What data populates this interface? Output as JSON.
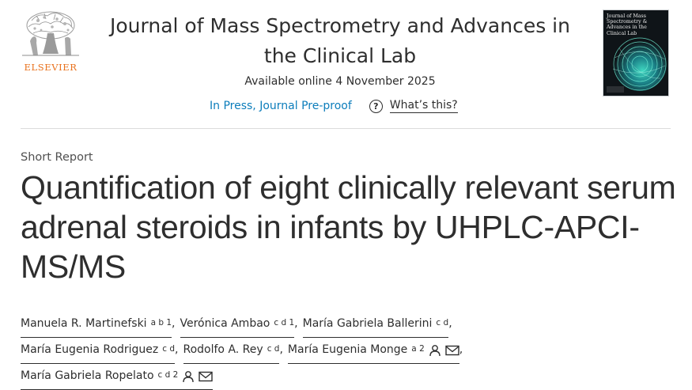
{
  "publisher": {
    "name": "ELSEVIER",
    "logo": "elsevier-tree-logo"
  },
  "journal": {
    "title_line1": "Journal of Mass Spectrometry and Advances in",
    "title_line2": "the Clinical Lab",
    "cover_title": "Journal of Mass Spectrometry & Advances in the Clinical Lab"
  },
  "availability": "Available online 4 November 2025",
  "status": {
    "in_press": "In Press, Journal Pre-proof",
    "whats_this": "What’s this?",
    "icon": "question-circle-icon"
  },
  "article": {
    "type": "Short Report",
    "title": "Quantification of eight clinically relevant serum adrenal steroids in infants by UHPLC-APCI-MS/MS"
  },
  "authors": [
    {
      "name": "Manuela R. Martinefski",
      "affil": "a b 1",
      "icons": []
    },
    {
      "name": "Verónica Ambao",
      "affil": "c d 1",
      "icons": []
    },
    {
      "name": "María Gabriela Ballerini",
      "affil": "c d",
      "icons": []
    },
    {
      "name": "María Eugenia Rodriguez",
      "affil": "c d",
      "icons": []
    },
    {
      "name": "Rodolfo A. Rey",
      "affil": "c d",
      "icons": []
    },
    {
      "name": "María Eugenia Monge",
      "affil": "a 2",
      "icons": [
        "person-icon",
        "envelope-icon"
      ]
    },
    {
      "name": "María Gabriela Ropelato",
      "affil": "c d 2",
      "icons": [
        "person-icon",
        "envelope-icon"
      ]
    }
  ],
  "colors": {
    "publisher_orange": "#e9711c",
    "link_blue": "#0c7dbb",
    "text": "#2e2e2e"
  }
}
